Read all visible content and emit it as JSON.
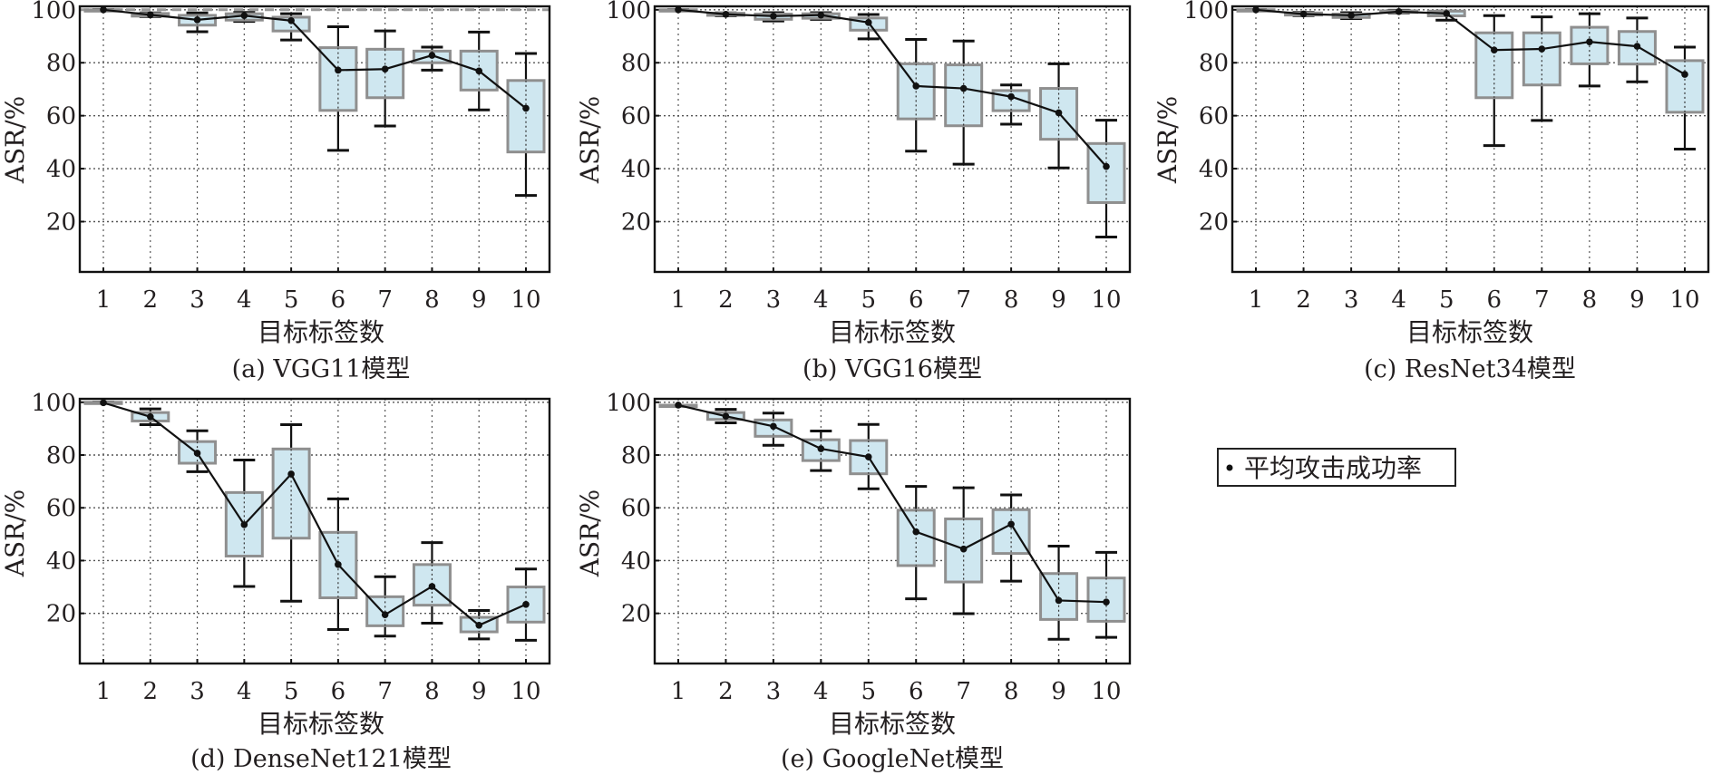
{
  "legend": {
    "label": "平均攻击成功率",
    "marker": "dot-icon"
  },
  "colors": {
    "box_fill": "#cfe7f0",
    "box_edge": "#8f8f8f",
    "line": "#111111",
    "reference": "#9a9a9a"
  },
  "chart_data": [
    {
      "type": "box",
      "id": "a",
      "title": "(a) VGG11模型",
      "xlabel": "目标标签数",
      "ylabel": "ASR/%",
      "categories": [
        "1",
        "2",
        "3",
        "4",
        "5",
        "6",
        "7",
        "8",
        "9",
        "10"
      ],
      "yticks": [
        "20",
        "40",
        "60",
        "80",
        "100"
      ],
      "ylim": [
        1,
        101.3
      ],
      "grid": true,
      "reference_line": 100,
      "series": [
        {
          "name": "box",
          "whisker_high": [
            100,
            98.8,
            98.8,
            99.0,
            98.5,
            93.6,
            92.0,
            85.9,
            91.6,
            83.5
          ],
          "q3": [
            100,
            98.6,
            97.9,
            98.5,
            97.2,
            85.7,
            85.1,
            84.4,
            84.4,
            73.3
          ],
          "q1": [
            100,
            97.6,
            94.2,
            96.1,
            92.0,
            62.0,
            66.8,
            80.0,
            69.7,
            46.3
          ],
          "whisker_low": [
            100,
            97.4,
            91.7,
            95.6,
            88.6,
            46.9,
            56.1,
            77.2,
            62.2,
            29.9
          ]
        },
        {
          "name": "平均攻击成功率",
          "values": [
            100,
            98.1,
            96.2,
            97.8,
            95.9,
            77.2,
            77.6,
            82.8,
            76.9,
            62.8
          ]
        }
      ]
    },
    {
      "type": "box",
      "id": "b",
      "title": "(b) VGG16模型",
      "xlabel": "目标标签数",
      "ylabel": "ASR/%",
      "categories": [
        "1",
        "2",
        "3",
        "4",
        "5",
        "6",
        "7",
        "8",
        "9",
        "10"
      ],
      "yticks": [
        "20",
        "40",
        "60",
        "80",
        "100"
      ],
      "ylim": [
        1,
        101.3
      ],
      "grid": true,
      "series": [
        {
          "name": "box",
          "whisker_high": [
            100,
            98.8,
            98.9,
            98.9,
            98.2,
            88.8,
            88.2,
            71.6,
            79.6,
            58.3
          ],
          "q3": [
            100,
            98.7,
            98.4,
            98.5,
            96.9,
            79.6,
            79.2,
            69.5,
            70.3,
            49.5
          ],
          "q1": [
            100,
            97.9,
            96.4,
            96.8,
            92.3,
            58.8,
            56.2,
            61.9,
            51.1,
            27.2
          ],
          "whisker_low": [
            100,
            97.7,
            95.8,
            96.4,
            89.0,
            46.6,
            41.7,
            56.8,
            40.3,
            14.2
          ]
        },
        {
          "name": "平均攻击成功率",
          "values": [
            100,
            98.3,
            97.6,
            98.0,
            95.2,
            71.2,
            70.3,
            67.2,
            61.1,
            40.8
          ]
        }
      ]
    },
    {
      "type": "box",
      "id": "c",
      "title": "(c) ResNet34模型",
      "xlabel": "目标标签数",
      "ylabel": "ASR/%",
      "categories": [
        "1",
        "2",
        "3",
        "4",
        "5",
        "6",
        "7",
        "8",
        "9",
        "10"
      ],
      "yticks": [
        "20",
        "40",
        "60",
        "80",
        "100"
      ],
      "ylim": [
        1,
        101.3
      ],
      "grid": true,
      "series": [
        {
          "name": "box",
          "whisker_high": [
            100,
            99.0,
            98.9,
            99.8,
            99.5,
            97.8,
            97.3,
            98.5,
            96.9,
            85.9
          ],
          "q3": [
            100,
            98.8,
            98.4,
            99.6,
            99.5,
            91.3,
            91.3,
            93.4,
            91.8,
            80.8
          ],
          "q1": [
            100,
            98.0,
            97.1,
            99.0,
            97.7,
            66.8,
            71.6,
            79.6,
            79.5,
            61.3
          ],
          "whisker_low": [
            100,
            97.8,
            96.7,
            98.8,
            96.1,
            48.7,
            58.2,
            71.2,
            72.8,
            47.4
          ]
        },
        {
          "name": "平均攻击成功率",
          "values": [
            100,
            98.4,
            97.9,
            99.3,
            98.6,
            84.8,
            85.2,
            87.9,
            86.2,
            75.6
          ]
        }
      ]
    },
    {
      "type": "box",
      "id": "d",
      "title": "(d) DenseNet121模型",
      "xlabel": "目标标签数",
      "ylabel": "ASR/%",
      "categories": [
        "1",
        "2",
        "3",
        "4",
        "5",
        "6",
        "7",
        "8",
        "9",
        "10"
      ],
      "yticks": [
        "20",
        "40",
        "60",
        "80",
        "100"
      ],
      "ylim": [
        1,
        101.3
      ],
      "grid": true,
      "series": [
        {
          "name": "box",
          "whisker_high": [
            100,
            97.5,
            89.2,
            78.1,
            91.5,
            63.4,
            33.9,
            46.8,
            21.1,
            36.8
          ],
          "q3": [
            100,
            96.1,
            85.1,
            65.8,
            82.3,
            50.7,
            26.3,
            38.5,
            18.5,
            30.0
          ],
          "q1": [
            100,
            92.9,
            76.9,
            41.7,
            48.5,
            25.9,
            15.3,
            23.1,
            13.0,
            16.7
          ],
          "whisker_low": [
            100,
            91.5,
            73.7,
            30.2,
            24.6,
            13.9,
            11.4,
            16.3,
            10.3,
            9.8
          ]
        },
        {
          "name": "平均攻击成功率",
          "values": [
            99.8,
            94.5,
            80.7,
            53.6,
            72.8,
            38.5,
            19.5,
            30.2,
            15.5,
            23.4
          ]
        }
      ]
    },
    {
      "type": "box",
      "id": "e",
      "title": "(e) GoogleNet模型",
      "xlabel": "目标标签数",
      "ylabel": "ASR/%",
      "categories": [
        "1",
        "2",
        "3",
        "4",
        "5",
        "6",
        "7",
        "8",
        "9",
        "10"
      ],
      "yticks": [
        "20",
        "40",
        "60",
        "80",
        "100"
      ],
      "ylim": [
        1,
        101.3
      ],
      "grid": true,
      "series": [
        {
          "name": "box",
          "whisker_high": [
            98.9,
            97.3,
            95.9,
            89.1,
            91.6,
            68.1,
            67.6,
            64.9,
            45.5,
            43.1
          ],
          "q3": [
            98.9,
            96.1,
            93.3,
            85.8,
            85.5,
            59.1,
            55.8,
            59.3,
            35.1,
            33.4
          ],
          "q1": [
            98.9,
            93.5,
            87.1,
            77.9,
            72.9,
            38.1,
            31.9,
            42.7,
            17.7,
            17.0
          ],
          "whisker_low": [
            98.9,
            92.2,
            83.7,
            74.1,
            67.2,
            25.5,
            19.9,
            32.2,
            10.2,
            10.9
          ]
        },
        {
          "name": "平均攻击成功率",
          "values": [
            98.9,
            94.7,
            90.9,
            82.4,
            79.3,
            50.9,
            44.4,
            53.8,
            24.9,
            24.3
          ]
        }
      ]
    }
  ]
}
